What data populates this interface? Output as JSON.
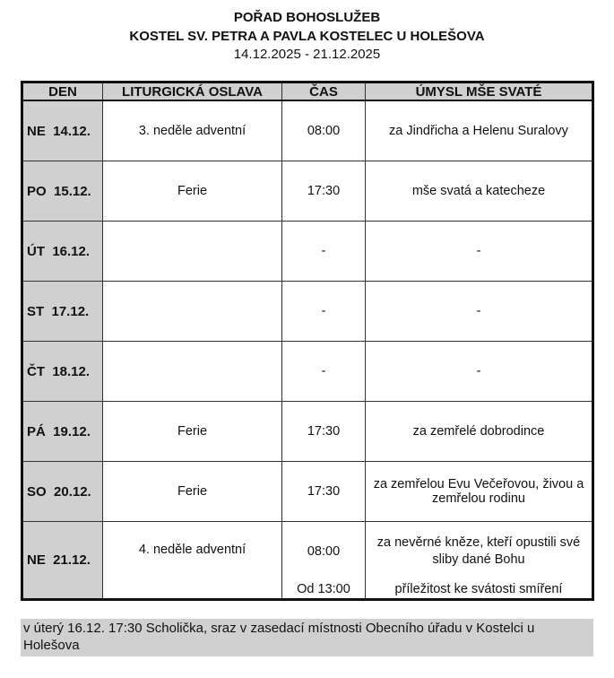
{
  "header": {
    "title": "POŘAD BOHOSLUŽEB",
    "church": "KOSTEL SV. PETRA A PAVLA KOSTELEC U HOLEŠOVA",
    "dates": "14.12.2025 - 21.12.2025"
  },
  "table": {
    "columns": [
      "DEN",
      "LITURGICKÁ OSLAVA",
      "ČAS",
      "ÚMYSL MŠE SVATÉ"
    ],
    "rows": [
      {
        "day": "NE  14.12.",
        "feast": "3. neděle adventní",
        "time": "08:00",
        "intention": "za Jindřicha a Helenu Suralovy"
      },
      {
        "day": "PO  15.12.",
        "feast": "Ferie",
        "time": "17:30",
        "intention": "mše svatá a katecheze"
      },
      {
        "day": "ÚT  16.12.",
        "feast": "",
        "time": "-",
        "intention": "-"
      },
      {
        "day": "ST  17.12.",
        "feast": "",
        "time": "-",
        "intention": "-"
      },
      {
        "day": "ČT  18.12.",
        "feast": "",
        "time": "-",
        "intention": "-"
      },
      {
        "day": "PÁ  19.12.",
        "feast": "Ferie",
        "time": "17:30",
        "intention": "za zemřelé dobrodince"
      },
      {
        "day": "SO  20.12.",
        "feast": "Ferie",
        "time": "17:30",
        "intention": "za zemřelou Evu Večeřovou, živou a zemřelou rodinu"
      }
    ],
    "last": {
      "day": "NE  21.12.",
      "feast": "4. neděle adventní",
      "time": "08:00",
      "intention": "za nevěrné kněze, kteří opustili své sliby dané Bohu",
      "time2": "Od 13:00",
      "intention2": "příležitost ke svátosti smíření"
    }
  },
  "note": "v úterý 16.12. 17:30 Scholička, sraz v zasedací místnosti Obecního úřadu v Kostelci u Holešova"
}
